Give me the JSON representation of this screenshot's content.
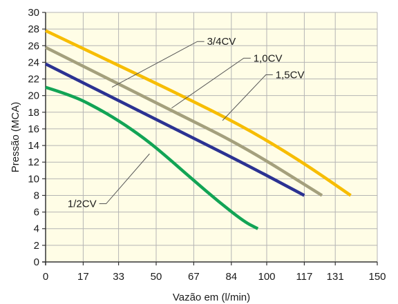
{
  "chart_data": {
    "type": "line",
    "xlabel": "Vazão em (l/min)",
    "ylabel": "Pressão (MCA)",
    "x_ticks": [
      0,
      17,
      33,
      50,
      67,
      84,
      100,
      117,
      131,
      150
    ],
    "y_ticks": [
      0,
      2,
      4,
      6,
      8,
      10,
      12,
      14,
      16,
      18,
      20,
      22,
      24,
      26,
      28,
      30
    ],
    "xlim": [
      0,
      150
    ],
    "ylim": [
      0,
      30
    ],
    "grid": true,
    "colors": {
      "background": "#FFFDE6",
      "grid": "#B4B4B4",
      "axis": "#333333"
    },
    "series": [
      {
        "name": "1/2CV",
        "color": "#12A455",
        "points": [
          [
            0,
            21
          ],
          [
            12,
            20
          ],
          [
            22,
            18.7
          ],
          [
            33,
            17
          ],
          [
            45,
            14.8
          ],
          [
            55,
            12.6
          ],
          [
            67,
            9.8
          ],
          [
            78,
            7.3
          ],
          [
            90,
            4.8
          ],
          [
            96,
            4
          ]
        ]
      },
      {
        "name": "3/4CV",
        "color": "#2B3292",
        "points": [
          [
            0,
            23.8
          ],
          [
            30,
            19.8
          ],
          [
            60,
            15.8
          ],
          [
            90,
            11.8
          ],
          [
            117,
            8
          ]
        ]
      },
      {
        "name": "1,0CV",
        "color": "#A4A07D",
        "points": [
          [
            0,
            25.8
          ],
          [
            30,
            21.8
          ],
          [
            60,
            17.8
          ],
          [
            90,
            13.8
          ],
          [
            125,
            8
          ]
        ]
      },
      {
        "name": "1,5CV",
        "color": "#F7BD00",
        "points": [
          [
            0,
            27.8
          ],
          [
            30,
            24
          ],
          [
            60,
            20.2
          ],
          [
            90,
            16.2
          ],
          [
            115,
            12.2
          ],
          [
            138,
            8
          ]
        ]
      }
    ],
    "annotations": [
      {
        "label": "3/4CV",
        "series": "3/4CV",
        "at": [
          30,
          21
        ],
        "text_at": [
          73,
          26.5
        ],
        "anchor": "start"
      },
      {
        "label": "1,0CV",
        "series": "1,0CV",
        "at": [
          57,
          18.5
        ],
        "text_at": [
          94,
          24.5
        ],
        "anchor": "start"
      },
      {
        "label": "1,5CV",
        "series": "1,5CV",
        "at": [
          80,
          17
        ],
        "text_at": [
          104,
          22.5
        ],
        "anchor": "start"
      },
      {
        "label": "1/2CV",
        "series": "1/2CV",
        "at": [
          47,
          13
        ],
        "text_at": [
          23,
          7
        ],
        "anchor": "end"
      }
    ]
  }
}
